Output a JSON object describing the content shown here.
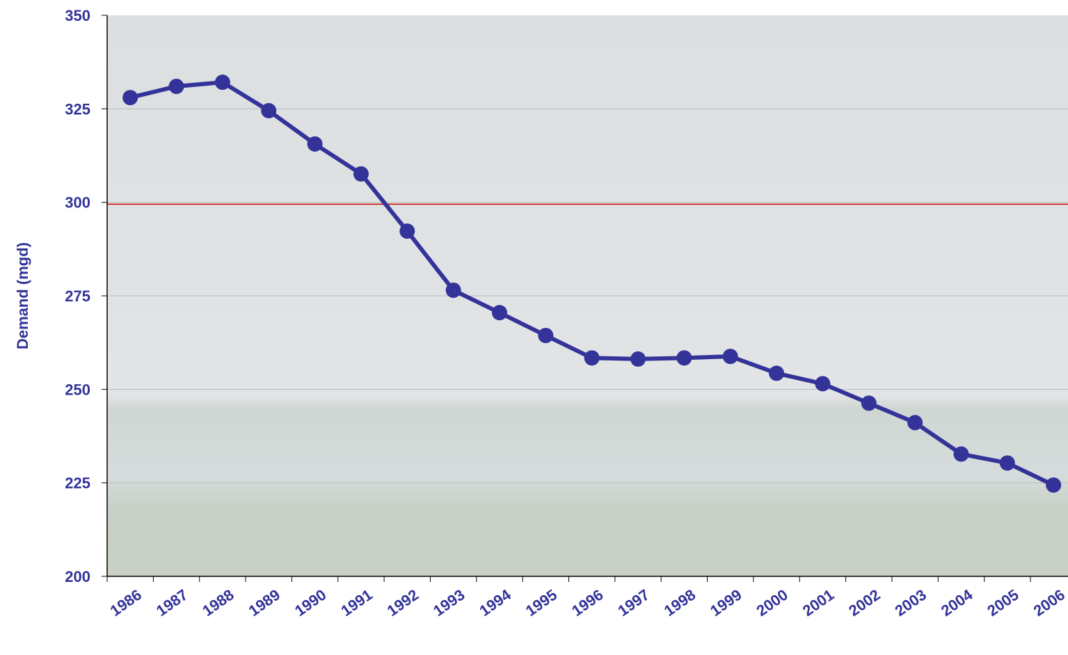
{
  "chart_data": {
    "type": "line",
    "y_label": "Demand (mgd)",
    "categories": [
      "1986",
      "1987",
      "1988",
      "1989",
      "1990",
      "1991",
      "1992",
      "1993",
      "1994",
      "1995",
      "1996",
      "1997",
      "1998",
      "1999",
      "2000",
      "2001",
      "2002",
      "2003",
      "2004",
      "2005",
      "2006"
    ],
    "series": [
      {
        "name": "Demand",
        "color": "#333399",
        "values": [
          328.0,
          331.0,
          332.1,
          324.5,
          315.6,
          307.6,
          292.3,
          276.5,
          270.5,
          264.4,
          258.4,
          258.1,
          258.4,
          258.8,
          254.3,
          251.5,
          246.3,
          241.1,
          232.7,
          230.3,
          224.4
        ]
      }
    ],
    "ylim": [
      200,
      350
    ],
    "yticks": [
      200,
      225,
      250,
      275,
      300,
      325,
      350
    ],
    "grid": true,
    "reference_line": {
      "value": 299.5,
      "color": "#cc0000"
    }
  }
}
